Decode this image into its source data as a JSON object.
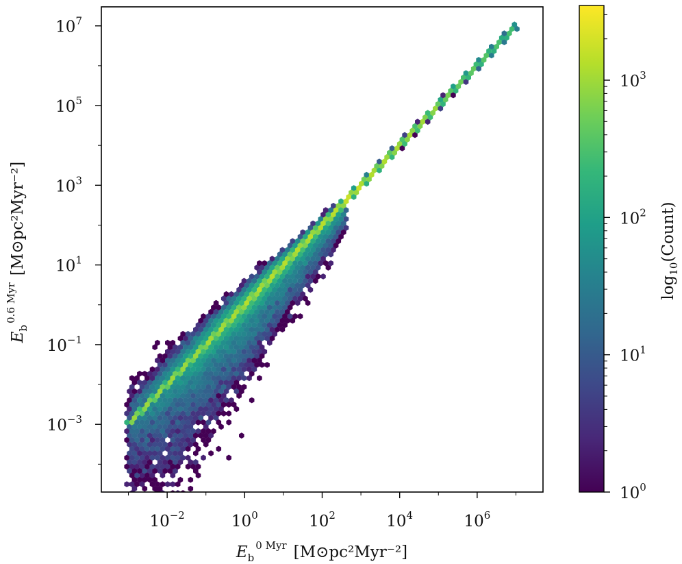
{
  "chart_data": {
    "type": "heatmap",
    "subtype": "hexbin-loglog",
    "xlabel": {
      "symbol": "E",
      "sub": "b",
      "sup": "0 Myr",
      "unit": "[M⊙pc²Myr⁻²]"
    },
    "ylabel": {
      "symbol": "E",
      "sub": "b",
      "sup": "0.6 Myr",
      "unit": "[M⊙pc²Myr⁻²]"
    },
    "x_scale": "log",
    "y_scale": "log",
    "xlim": [
      0.0002,
      50000000
    ],
    "ylim": [
      2e-05,
      30000000
    ],
    "xticks": [
      {
        "value": 0.01,
        "base": "10",
        "exp": "−2"
      },
      {
        "value": 1,
        "base": "10",
        "exp": "0"
      },
      {
        "value": 100,
        "base": "10",
        "exp": "2"
      },
      {
        "value": 10000,
        "base": "10",
        "exp": "4"
      },
      {
        "value": 1000000,
        "base": "10",
        "exp": "6"
      }
    ],
    "yticks": [
      {
        "value": 0.001,
        "base": "10",
        "exp": "−3"
      },
      {
        "value": 0.1,
        "base": "10",
        "exp": "−1"
      },
      {
        "value": 10,
        "base": "10",
        "exp": "1"
      },
      {
        "value": 1000,
        "base": "10",
        "exp": "3"
      },
      {
        "value": 100000,
        "base": "10",
        "exp": "5"
      },
      {
        "value": 10000000,
        "base": "10",
        "exp": "7"
      }
    ],
    "colorbar": {
      "label": "log10(Count)",
      "label_parts": {
        "main": "log",
        "sub": "10",
        "rest": "(Count)"
      },
      "scale": "log",
      "range": [
        1,
        3500
      ],
      "ticks": [
        {
          "value": 1,
          "base": "10",
          "exp": "0"
        },
        {
          "value": 10,
          "base": "10",
          "exp": "1"
        },
        {
          "value": 100,
          "base": "10",
          "exp": "2"
        },
        {
          "value": 1000,
          "base": "10",
          "exp": "3"
        }
      ],
      "colormap": "viridis"
    },
    "ridge": {
      "description": "dense diagonal ridge along y ≈ x",
      "x_range": [
        0.001,
        10000000
      ],
      "peak_count_near_x1": 3000
    },
    "grid": false
  },
  "colors": {
    "viridis": [
      "#440154",
      "#482878",
      "#3e4989",
      "#31688e",
      "#26828e",
      "#1f9e89",
      "#35b779",
      "#6ece58",
      "#b5de2b",
      "#fde725"
    ]
  }
}
